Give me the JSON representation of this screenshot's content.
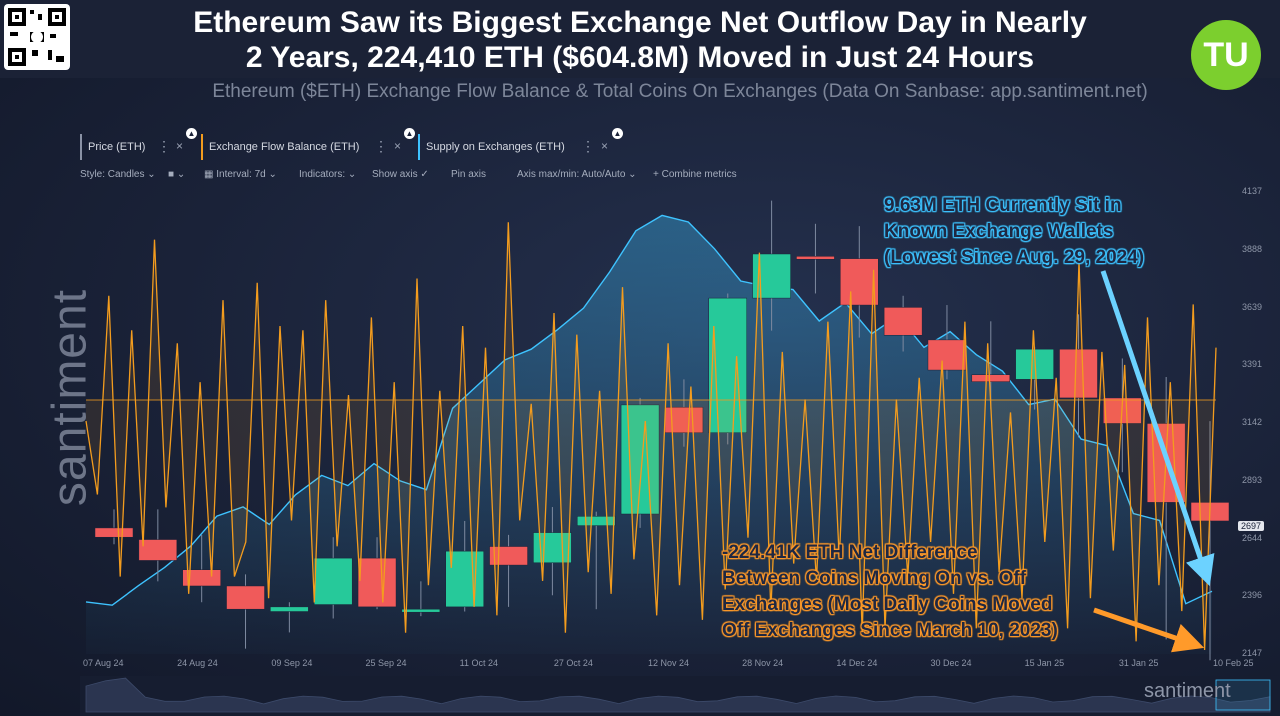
{
  "header": {
    "title_line1": "Ethereum Saw its Biggest Exchange Net Outflow Day in Nearly",
    "title_line2": "2 Years, 224,410 ETH ($604.8M) Moved in Just 24 Hours",
    "subtitle": "Ethereum ($ETH) Exchange Flow Balance & Total Coins On Exchanges (Data On Sanbase: app.santiment.net)",
    "logo_text": "TU",
    "qr_icon": "qr-code-icon"
  },
  "watermark": {
    "left": "santiment",
    "bottom_right": "santiment"
  },
  "tabs": [
    {
      "label": "Price (ETH)",
      "menu": "⋮",
      "close": "×",
      "color": "#8a92a5"
    },
    {
      "label": "Exchange Flow Balance (ETH)",
      "menu": "⋮",
      "close": "×",
      "color": "#f39c1e"
    },
    {
      "label": "Supply on Exchanges (ETH)",
      "menu": "⋮",
      "close": "×",
      "color": "#3ec3ff"
    }
  ],
  "toolbar": {
    "style": "Style: Candles",
    "interval": "Interval: 7d",
    "indicators": "Indicators:",
    "show_axis": "Show axis",
    "pin_axis": "Pin axis",
    "axis_minmax": "Axis max/min: Auto/Auto",
    "combine": "Combine metrics"
  },
  "annotations": {
    "blue": [
      "9.63M ETH Currently Sit in",
      "Known Exchange Wallets",
      "(Lowest Since Aug. 29, 2024)"
    ],
    "orange": [
      "-224.41K ETH Net Difference",
      "Between Coins Moving On vs. Off",
      "Exchanges (Most Daily Coins Moved",
      "Off Exchanges Since March 10, 2023)"
    ]
  },
  "colors": {
    "up": "#26c99a",
    "down": "#f05a5a",
    "flow": "#f39c1e",
    "supply": "#3ec3ff",
    "background": "#1a2238"
  },
  "chart_data": {
    "type": "candlestick+line+area",
    "title": "Ethereum ($ETH) Exchange Flow Balance & Total Coins On Exchanges",
    "current_price_label": "2697",
    "price_axis": {
      "ticks": [
        "4137",
        "3888",
        "3639",
        "3391",
        "3142",
        "2893",
        "2644",
        "2396",
        "2147"
      ],
      "min": 2147,
      "max": 4137
    },
    "x_axis": {
      "labels": [
        "07 Aug 24",
        "24 Aug 24",
        "09 Sep 24",
        "25 Sep 24",
        "11 Oct 24",
        "27 Oct 24",
        "12 Nov 24",
        "28 Nov 24",
        "14 Dec 24",
        "30 Dec 24",
        "15 Jan 25",
        "31 Jan 25",
        "10 Feb 25"
      ]
    },
    "candles": [
      {
        "o": 2690,
        "h": 2770,
        "l": 2620,
        "c": 2650
      },
      {
        "o": 2640,
        "h": 2770,
        "l": 2460,
        "c": 2550
      },
      {
        "o": 2510,
        "h": 2660,
        "l": 2370,
        "c": 2440
      },
      {
        "o": 2440,
        "h": 2490,
        "l": 2170,
        "c": 2340
      },
      {
        "o": 2330,
        "h": 2370,
        "l": 2240,
        "c": 2350
      },
      {
        "o": 2360,
        "h": 2650,
        "l": 2300,
        "c": 2560
      },
      {
        "o": 2560,
        "h": 2650,
        "l": 2340,
        "c": 2350
      },
      {
        "o": 2340,
        "h": 2460,
        "l": 2310,
        "c": 2340
      },
      {
        "o": 2350,
        "h": 2720,
        "l": 2330,
        "c": 2590
      },
      {
        "o": 2610,
        "h": 2660,
        "l": 2350,
        "c": 2530
      },
      {
        "o": 2540,
        "h": 2780,
        "l": 2400,
        "c": 2670
      },
      {
        "o": 2700,
        "h": 2760,
        "l": 2340,
        "c": 2740
      },
      {
        "o": 2750,
        "h": 3250,
        "l": 2690,
        "c": 3220
      },
      {
        "o": 3210,
        "h": 3330,
        "l": 3040,
        "c": 3100
      },
      {
        "o": 3100,
        "h": 3700,
        "l": 3050,
        "c": 3680
      },
      {
        "o": 3680,
        "h": 4100,
        "l": 3540,
        "c": 3870
      },
      {
        "o": 3860,
        "h": 4000,
        "l": 3700,
        "c": 3850
      },
      {
        "o": 3850,
        "h": 3990,
        "l": 3510,
        "c": 3650
      },
      {
        "o": 3640,
        "h": 3690,
        "l": 3450,
        "c": 3520
      },
      {
        "o": 3500,
        "h": 3650,
        "l": 3330,
        "c": 3370
      },
      {
        "o": 3350,
        "h": 3580,
        "l": 3200,
        "c": 3320
      },
      {
        "o": 3330,
        "h": 3470,
        "l": 3200,
        "c": 3460
      },
      {
        "o": 3460,
        "h": 3610,
        "l": 3080,
        "c": 3250
      },
      {
        "o": 3250,
        "h": 3420,
        "l": 2930,
        "c": 3140
      },
      {
        "o": 3140,
        "h": 3340,
        "l": 2210,
        "c": 2800
      },
      {
        "o": 2800,
        "h": 3150,
        "l": 2120,
        "c": 2720
      }
    ],
    "supply_on_exchanges": [
      1.04,
      0.95,
      1.48,
      1.98,
      2.56,
      3.38,
      3.63,
      3.15,
      3.96,
      4.49,
      4.21,
      4.81,
      4.34,
      4.1,
      6.32,
      6.98,
      7.64,
      7.93,
      8.46,
      9.05,
      10.04,
      11.16,
      11.58,
      11.4,
      10.67,
      9.79,
      9.64,
      9.56,
      8.7,
      9.2,
      8.35,
      8.84,
      7.98,
      8.41,
      7.78,
      7.33,
      6.42,
      6.57,
      5.48,
      5.3,
      3.45,
      3.26,
      0.99,
      1.33
    ],
    "exchange_flow_balance": [
      0.53,
      0.36,
      0.82,
      0.17,
      0.74,
      0.24,
      0.95,
      0.33,
      0.71,
      0.13,
      0.62,
      0.17,
      0.81,
      0.17,
      0.25,
      0.85,
      0.12,
      0.75,
      0.3,
      0.74,
      0.11,
      0.81,
      0.24,
      0.59,
      0.16,
      0.77,
      0.11,
      0.62,
      0.04,
      0.86,
      0.15,
      0.6,
      0.19,
      0.75,
      0.1,
      0.7,
      0.08,
      0.99,
      0.3,
      0.57,
      0.16,
      0.78,
      0.04,
      0.73,
      0.18,
      0.6,
      0.13,
      0.84,
      0.21,
      0.53,
      0.08,
      0.71,
      0.15,
      0.61,
      0.07,
      0.75,
      0.14,
      0.68,
      0.26,
      0.92,
      0.09,
      0.69,
      0.2,
      0.58,
      0.16,
      0.76,
      0.21,
      0.83,
      0.04,
      0.88,
      0.05,
      0.58,
      0.17,
      0.63,
      0.25,
      0.67,
      0.13,
      0.76,
      0.05,
      0.71,
      0.18,
      0.55,
      0.12,
      0.74,
      0.25,
      0.63,
      0.05,
      0.9,
      0.12,
      0.69,
      0.23,
      0.66,
      0.02,
      0.77,
      0.15,
      0.62,
      0.09,
      0.8,
      0.0,
      0.7
    ]
  }
}
